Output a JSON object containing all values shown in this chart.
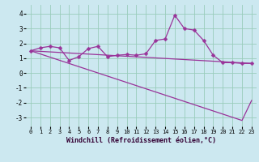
{
  "title": "",
  "xlabel": "Windchill (Refroidissement éolien,°C)",
  "background_color": "#cce8f0",
  "grid_color": "#99ccbb",
  "line_color": "#993399",
  "xlim": [
    -0.5,
    23.5
  ],
  "ylim": [
    -3.6,
    4.6
  ],
  "yticks": [
    -3,
    -2,
    -1,
    0,
    1,
    2,
    3,
    4
  ],
  "xticks": [
    0,
    1,
    2,
    3,
    4,
    5,
    6,
    7,
    8,
    9,
    10,
    11,
    12,
    13,
    14,
    15,
    16,
    17,
    18,
    19,
    20,
    21,
    22,
    23
  ],
  "line1_x": [
    0,
    1,
    2,
    3,
    4,
    5,
    6,
    7,
    8,
    9,
    10,
    11,
    12,
    13,
    14,
    15,
    16,
    17,
    18,
    19,
    20,
    21,
    22,
    23
  ],
  "line1_y": [
    1.5,
    1.7,
    1.8,
    1.7,
    0.85,
    1.1,
    1.65,
    1.8,
    1.1,
    1.2,
    1.25,
    1.2,
    1.3,
    2.2,
    2.3,
    3.9,
    3.0,
    2.9,
    2.2,
    1.2,
    0.7,
    0.7,
    0.65,
    0.65
  ],
  "line2_x": [
    0,
    23
  ],
  "line2_y": [
    1.5,
    0.65
  ],
  "line3_x": [
    0,
    22,
    23
  ],
  "line3_y": [
    1.5,
    -3.2,
    -1.85
  ],
  "marker": "D",
  "markersize": 2.5,
  "linewidth": 0.9,
  "tick_fontsize": 5.0,
  "xlabel_fontsize": 6.0
}
